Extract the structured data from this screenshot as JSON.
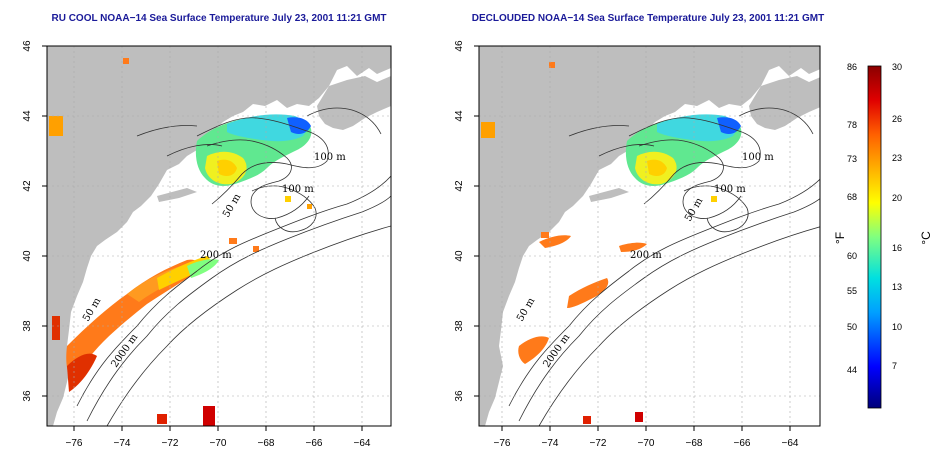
{
  "panels": [
    {
      "title": "RU COOL NOAA−14 Sea Surface Temperature July 23, 2001 11:21 GMT",
      "contour_labels": [
        "100 m",
        "100 m",
        "50 m",
        "200 m",
        "50 m",
        "2000 m"
      ]
    },
    {
      "title": "DECLOUDED NOAA−14 Sea Surface Temperature July 23, 2001 11:21 GMT",
      "contour_labels": [
        "100 m",
        "100 m",
        "50 m",
        "200 m",
        "50 m",
        "2000 m"
      ]
    }
  ],
  "axes": {
    "x_ticks": [
      "−76",
      "−74",
      "−72",
      "−70",
      "−68",
      "−66",
      "−64"
    ],
    "y_ticks": [
      "46",
      "44",
      "42",
      "40",
      "38",
      "36"
    ]
  },
  "colorbar": {
    "unit_f": "°F",
    "unit_c": "°C",
    "f_labels": [
      "86",
      "78",
      "73",
      "68",
      "60",
      "55",
      "50",
      "44"
    ],
    "c_labels": [
      "30",
      "26",
      "23",
      "20",
      "16",
      "13",
      "10",
      "7"
    ],
    "range_c": [
      4,
      30
    ]
  },
  "colors": {
    "title": "#1a1a99",
    "land": "#bebebe",
    "water": "#ffffff",
    "grid": "#aaaaaa",
    "contour": "#333333"
  }
}
